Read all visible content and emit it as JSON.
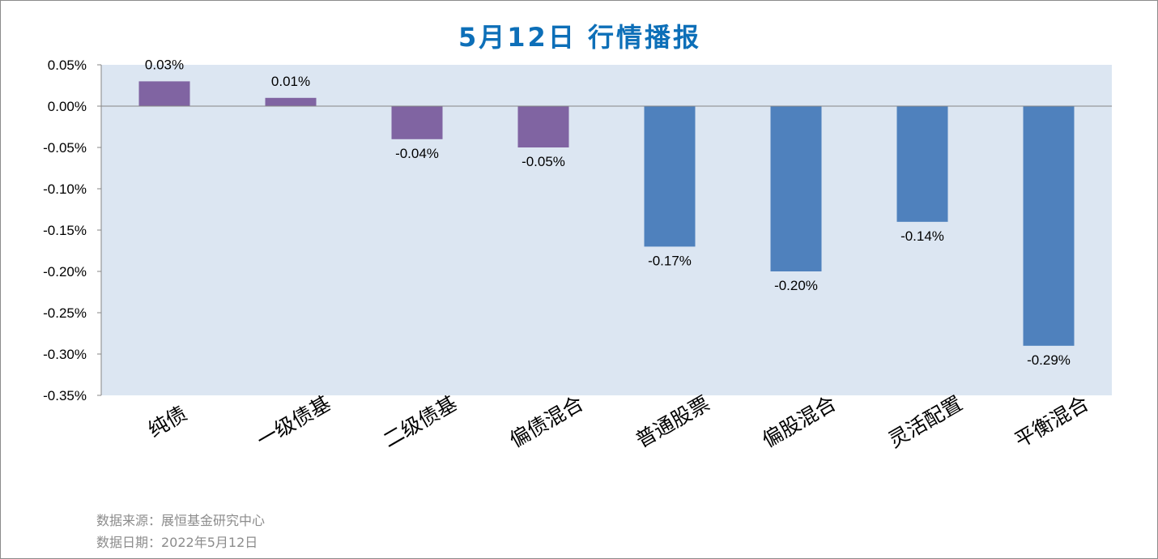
{
  "title": "5月12日  行情播报",
  "footer": {
    "source": "数据来源：展恒基金研究中心",
    "date": "数据日期：2022年5月12日"
  },
  "colors": {
    "title": "#0d6fb8",
    "plot_bg": "#dce6f2",
    "bond": "#8064a2",
    "equity": "#4f81bd"
  },
  "chart_data": {
    "type": "bar",
    "title": "5月12日  行情播报",
    "categories": [
      "纯债",
      "一级债基",
      "二级债基",
      "偏债混合",
      "普通股票",
      "偏股混合",
      "灵活配置",
      "平衡混合"
    ],
    "values": [
      0.03,
      0.01,
      -0.04,
      -0.05,
      -0.17,
      -0.2,
      -0.14,
      -0.29
    ],
    "value_labels": [
      "0.03%",
      "0.01%",
      "-0.04%",
      "-0.05%",
      "-0.17%",
      "-0.20%",
      "-0.14%",
      "-0.29%"
    ],
    "bar_colors": [
      "#8064a2",
      "#8064a2",
      "#8064a2",
      "#8064a2",
      "#4f81bd",
      "#4f81bd",
      "#4f81bd",
      "#4f81bd"
    ],
    "ylim": [
      -0.35,
      0.05
    ],
    "yticks": [
      0.05,
      0.0,
      -0.05,
      -0.1,
      -0.15,
      -0.2,
      -0.25,
      -0.3,
      -0.35
    ],
    "ytick_labels": [
      "0.05%",
      "0.00%",
      "-0.05%",
      "-0.10%",
      "-0.15%",
      "-0.20%",
      "-0.25%",
      "-0.30%",
      "-0.35%"
    ],
    "xlabel": "",
    "ylabel": "",
    "grid": false,
    "legend": "none"
  }
}
